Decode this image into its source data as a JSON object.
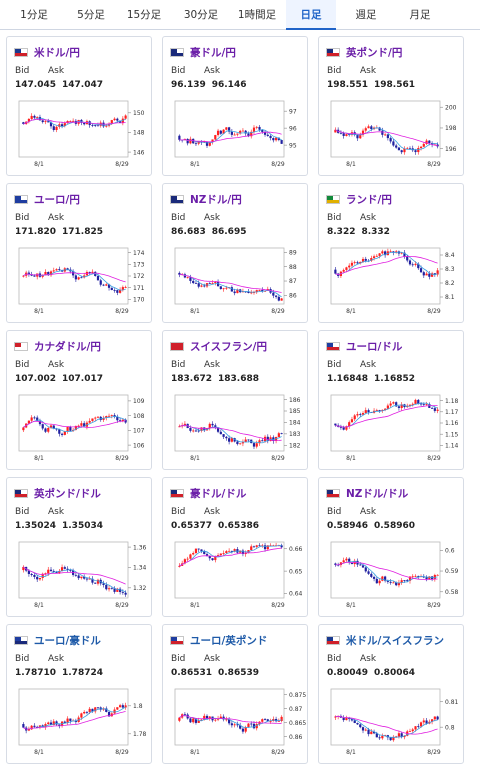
{
  "tabs": [
    {
      "label": "1分足",
      "active": false
    },
    {
      "label": "5分足",
      "active": false
    },
    {
      "label": "15分足",
      "active": false
    },
    {
      "label": "30分足",
      "active": false
    },
    {
      "label": "1時間足",
      "active": false
    },
    {
      "label": "日足",
      "active": true
    },
    {
      "label": "週足",
      "active": false
    },
    {
      "label": "月足",
      "active": false
    }
  ],
  "labels": {
    "bid": "Bid",
    "ask": "Ask"
  },
  "colors": {
    "up": "#ff2020",
    "down": "#2020a0",
    "ma_magenta": "#e020e0",
    "ma_blue": "#3aa0e0"
  },
  "cards": [
    {
      "name": "米ドル/円",
      "color": "purple",
      "flag": "us",
      "bid": "147.045",
      "ask": "147.047",
      "yticks": [
        "150",
        "148",
        "146"
      ],
      "ymin": 145.5,
      "ymax": 151.2,
      "xticks": [
        "8/1",
        "8/29"
      ],
      "seed": 11
    },
    {
      "name": "豪ドル/円",
      "color": "purple",
      "flag": "au",
      "bid": "96.139",
      "ask": "96.146",
      "yticks": [
        "97",
        "96",
        "95"
      ],
      "ymin": 94.3,
      "ymax": 97.6,
      "xticks": [
        "8/1",
        "8/29"
      ],
      "seed": 22
    },
    {
      "name": "英ポンド/円",
      "color": "purple",
      "flag": "gb",
      "bid": "198.551",
      "ask": "198.561",
      "yticks": [
        "200",
        "198",
        "196"
      ],
      "ymin": 195.2,
      "ymax": 200.6,
      "xticks": [
        "8/1",
        "8/29"
      ],
      "seed": 33
    },
    {
      "name": "ユーロ/円",
      "color": "purple",
      "flag": "eu",
      "bid": "171.820",
      "ask": "171.825",
      "yticks": [
        "174",
        "173",
        "172",
        "171",
        "170"
      ],
      "ymin": 169.6,
      "ymax": 174.4,
      "xticks": [
        "8/1",
        "8/29"
      ],
      "seed": 44
    },
    {
      "name": "NZドル/円",
      "color": "purple",
      "flag": "nz",
      "bid": "86.683",
      "ask": "86.695",
      "yticks": [
        "89",
        "88",
        "87",
        "86"
      ],
      "ymin": 85.4,
      "ymax": 89.3,
      "xticks": [
        "8/1",
        "8/29"
      ],
      "seed": 55
    },
    {
      "name": "ランド/円",
      "color": "purple",
      "flag": "za",
      "bid": "8.322",
      "ask": "8.332",
      "yticks": [
        "8.4",
        "8.3",
        "8.2",
        "8.1"
      ],
      "ymin": 8.05,
      "ymax": 8.45,
      "xticks": [
        "8/1",
        "8/29"
      ],
      "seed": 66
    },
    {
      "name": "カナダドル/円",
      "color": "purple",
      "flag": "ca",
      "bid": "107.002",
      "ask": "107.017",
      "yticks": [
        "109",
        "108",
        "107",
        "106"
      ],
      "ymin": 105.6,
      "ymax": 109.4,
      "xticks": [
        "8/1",
        "8/29"
      ],
      "seed": 77
    },
    {
      "name": "スイスフラン/円",
      "color": "purple",
      "flag": "ch",
      "bid": "183.672",
      "ask": "183.688",
      "yticks": [
        "186",
        "185",
        "184",
        "183",
        "182"
      ],
      "ymin": 181.5,
      "ymax": 186.4,
      "xticks": [
        "8/1",
        "8/29"
      ],
      "seed": 88
    },
    {
      "name": "ユーロ/ドル",
      "color": "purple",
      "flag": "euus",
      "bid": "1.16848",
      "ask": "1.16852",
      "yticks": [
        "1.18",
        "1.17",
        "1.16",
        "1.15",
        "1.14"
      ],
      "ymin": 1.135,
      "ymax": 1.185,
      "xticks": [
        "8/1",
        "8/29"
      ],
      "seed": 99
    },
    {
      "name": "英ポンド/ドル",
      "color": "purple",
      "flag": "gbus",
      "bid": "1.35024",
      "ask": "1.35034",
      "yticks": [
        "1.36",
        "1.34",
        "1.32"
      ],
      "ymin": 1.31,
      "ymax": 1.365,
      "xticks": [
        "8/1",
        "8/29"
      ],
      "seed": 111
    },
    {
      "name": "豪ドル/ドル",
      "color": "purple",
      "flag": "auus",
      "bid": "0.65377",
      "ask": "0.65386",
      "yticks": [
        "0.66",
        "0.65",
        "0.64"
      ],
      "ymin": 0.638,
      "ymax": 0.663,
      "xticks": [
        "8/1",
        "8/29"
      ],
      "seed": 122
    },
    {
      "name": "NZドル/ドル",
      "color": "purple",
      "flag": "nzus",
      "bid": "0.58946",
      "ask": "0.58960",
      "yticks": [
        "0.6",
        "0.59",
        "0.58"
      ],
      "ymin": 0.577,
      "ymax": 0.604,
      "xticks": [
        "8/1",
        "8/29"
      ],
      "seed": 133
    },
    {
      "name": "ユーロ/豪ドル",
      "color": "blue",
      "flag": "euau",
      "bid": "1.78710",
      "ask": "1.78724",
      "yticks": [
        "1.8",
        "1.78"
      ],
      "ymin": 1.772,
      "ymax": 1.812,
      "xticks": [
        "8/1",
        "8/29"
      ],
      "seed": 144
    },
    {
      "name": "ユーロ/英ポンド",
      "color": "blue",
      "flag": "eugb",
      "bid": "0.86531",
      "ask": "0.86539",
      "yticks": [
        "0.875",
        "0.87",
        "0.865",
        "0.86"
      ],
      "ymin": 0.857,
      "ymax": 0.877,
      "xticks": [
        "8/1",
        "8/29"
      ],
      "seed": 155
    },
    {
      "name": "米ドル/スイスフラン",
      "color": "blue",
      "flag": "usch",
      "bid": "0.80049",
      "ask": "0.80064",
      "yticks": [
        "0.81",
        "0.8"
      ],
      "ymin": 0.793,
      "ymax": 0.815,
      "xticks": [
        "8/1",
        "8/29"
      ],
      "seed": 166
    }
  ]
}
